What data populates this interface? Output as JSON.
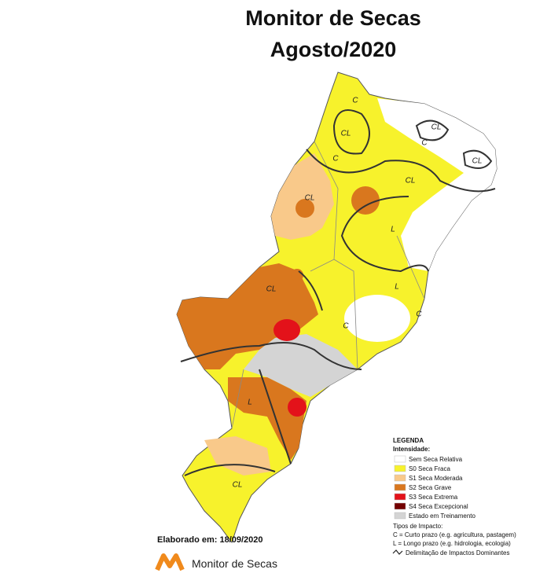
{
  "header": {
    "title": [
      "Monitor de Secas",
      "Agosto/2020"
    ]
  },
  "map": {
    "labels": [
      "C",
      "CL",
      "CL",
      "C",
      "CL",
      "C",
      "CL",
      "CL",
      "L",
      "L",
      "C",
      "C",
      "CL",
      "L",
      "CL"
    ]
  },
  "legend": {
    "title": "LEGENDA",
    "subtitle": "Intensidade:",
    "items": [
      {
        "label": "Sem Seca Relativa",
        "color": "#ffffff"
      },
      {
        "label": "S0 Seca Fraca",
        "color": "#f7f22c"
      },
      {
        "label": "S1 Seca Moderada",
        "color": "#f9c98a"
      },
      {
        "label": "S2 Seca Grave",
        "color": "#d9771e"
      },
      {
        "label": "S3 Seca Extrema",
        "color": "#e3121a"
      },
      {
        "label": "S4 Seca Excepcional",
        "color": "#730000"
      },
      {
        "label": "Estado em Treinamento",
        "color": "#d4d4d4"
      }
    ],
    "impact_title": "Tipos de Impacto:",
    "impact_items": [
      "C = Curto prazo (e.g. agricultura, pastagem)",
      "L = Longo prazo (e.g. hidrologia, ecologia)"
    ],
    "delimitation": "Delimitação de Impactos Dominantes"
  },
  "footer": {
    "date": "Elaborado em: 18/09/2020",
    "logo_text": "Monitor de Secas"
  }
}
